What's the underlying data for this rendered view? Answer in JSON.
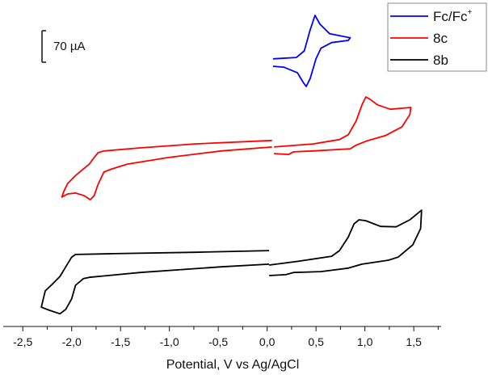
{
  "chart_data": {
    "type": "line",
    "title": "",
    "xlabel": "Potential, V vs  Ag/AgCl",
    "ylabel": "",
    "xlim": [
      -2.7,
      1.78
    ],
    "ylim": [
      0,
      744
    ],
    "y_units_note_from_scale_bar": "70 µA",
    "x_ticks": [
      -2.5,
      -2.0,
      -1.5,
      -1.0,
      -0.5,
      0.0,
      0.5,
      1.0,
      1.5
    ],
    "x_tick_labels": [
      "-2,5",
      "-2,0",
      "-1,5",
      "-1,0",
      "-0,5",
      "0,0",
      "0,5",
      "1,0",
      "1,5"
    ],
    "grid": false,
    "legend_position": "top-right",
    "scale_bar": {
      "label": "70 µA",
      "value": 70
    },
    "series": [
      {
        "name": "Fc/Fc",
        "name_sup": "+",
        "color": "#0000ff",
        "segments": [
          [
            [
              0.06,
              610
            ],
            [
              0.3,
              613
            ],
            [
              0.38,
              628
            ],
            [
              0.44,
              676
            ],
            [
              0.49,
              709
            ],
            [
              0.54,
              689
            ],
            [
              0.64,
              667
            ],
            [
              0.85,
              658
            ],
            [
              0.83,
              652
            ],
            [
              0.66,
              647
            ],
            [
              0.55,
              634
            ],
            [
              0.5,
              610
            ],
            [
              0.44,
              565
            ],
            [
              0.4,
              547
            ],
            [
              0.37,
              556
            ],
            [
              0.31,
              578
            ],
            [
              0.17,
              591
            ],
            [
              0.06,
              593
            ]
          ]
        ]
      },
      {
        "name": "8c",
        "color": "#ff0000",
        "segments": [
          [
            [
              0.05,
              424
            ],
            [
              -0.74,
              416
            ],
            [
              -1.3,
              407
            ],
            [
              -1.67,
              400
            ],
            [
              -1.73,
              396
            ],
            [
              -1.77,
              385
            ],
            [
              -1.82,
              370
            ],
            [
              -1.88,
              359
            ],
            [
              -1.96,
              344
            ],
            [
              -2.04,
              326
            ],
            [
              -2.08,
              308
            ],
            [
              -2.1,
              295
            ],
            [
              -2.04,
              302
            ],
            [
              -1.96,
              304
            ],
            [
              -1.87,
              298
            ],
            [
              -1.81,
              289
            ],
            [
              -1.77,
              298
            ],
            [
              -1.73,
              324
            ],
            [
              -1.67,
              352
            ],
            [
              -1.59,
              359
            ],
            [
              -1.43,
              370
            ],
            [
              -1.01,
              385
            ],
            [
              -0.47,
              400
            ],
            [
              0.05,
              409
            ]
          ],
          [
            [
              0.07,
              409
            ],
            [
              0.47,
              416
            ],
            [
              0.74,
              426
            ],
            [
              0.83,
              437
            ],
            [
              0.91,
              468
            ],
            [
              0.97,
              505
            ],
            [
              1.01,
              523
            ],
            [
              1.05,
              518
            ],
            [
              1.13,
              505
            ],
            [
              1.26,
              495
            ],
            [
              1.47,
              499
            ],
            [
              1.46,
              483
            ],
            [
              1.38,
              455
            ],
            [
              1.21,
              435
            ],
            [
              1.01,
              422
            ],
            [
              0.91,
              413
            ],
            [
              0.85,
              405
            ],
            [
              0.47,
              400
            ],
            [
              0.27,
              398
            ],
            [
              0.22,
              392
            ],
            [
              0.07,
              394
            ]
          ]
        ]
      },
      {
        "name": "8b",
        "color": "#000000",
        "segments": [
          [
            [
              0.02,
              173
            ],
            [
              -0.74,
              169
            ],
            [
              -1.57,
              166
            ],
            [
              -1.96,
              164
            ],
            [
              -2.0,
              158
            ],
            [
              -2.06,
              136
            ],
            [
              -2.12,
              114
            ],
            [
              -2.2,
              96
            ],
            [
              -2.27,
              81
            ],
            [
              -2.29,
              63
            ],
            [
              -2.31,
              44
            ],
            [
              -2.23,
              37
            ],
            [
              -2.12,
              29
            ],
            [
              -2.06,
              39
            ],
            [
              -2.0,
              63
            ],
            [
              -1.96,
              94
            ],
            [
              -1.88,
              109
            ],
            [
              -1.82,
              112
            ],
            [
              -1.3,
              123
            ],
            [
              -0.47,
              136
            ],
            [
              0.02,
              142
            ]
          ],
          [
            [
              0.02,
              140
            ],
            [
              0.33,
              149
            ],
            [
              0.66,
              160
            ],
            [
              0.74,
              173
            ],
            [
              0.83,
              204
            ],
            [
              0.89,
              234
            ],
            [
              0.94,
              243
            ],
            [
              1.01,
              241
            ],
            [
              1.16,
              228
            ],
            [
              1.32,
              227
            ],
            [
              1.46,
              243
            ],
            [
              1.58,
              265
            ],
            [
              1.57,
              223
            ],
            [
              1.49,
              186
            ],
            [
              1.34,
              158
            ],
            [
              1.24,
              151
            ],
            [
              0.97,
              142
            ],
            [
              0.83,
              133
            ],
            [
              0.55,
              125
            ],
            [
              0.27,
              123
            ],
            [
              0.19,
              118
            ],
            [
              0.02,
              116
            ]
          ]
        ]
      }
    ]
  }
}
